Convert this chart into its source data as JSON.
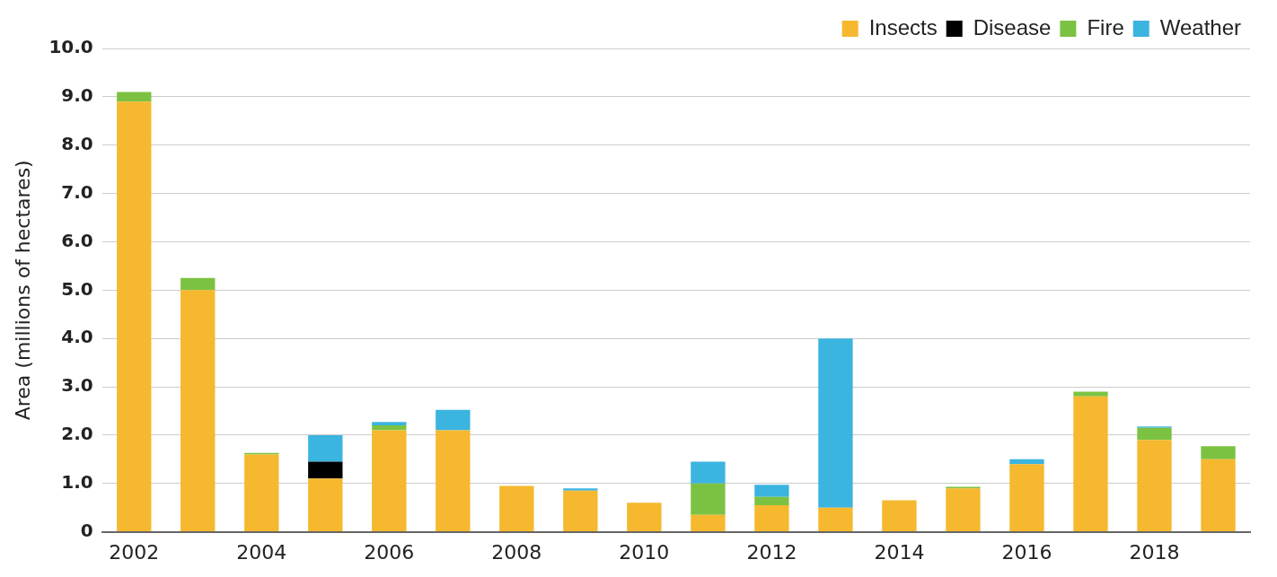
{
  "chart_data": {
    "type": "bar",
    "stacked": true,
    "ylabel": "Area (millions of hectares)",
    "categories": [
      "2002",
      null,
      "2004",
      null,
      "2006",
      null,
      "2008",
      null,
      "2010",
      null,
      "2012",
      null,
      "2014",
      null,
      "2016",
      null,
      "2018",
      null
    ],
    "series": [
      {
        "name": "Insects",
        "color": "#f5b82e",
        "values": [
          8.9,
          5.0,
          1.6,
          1.1,
          2.1,
          2.1,
          0.95,
          0.85,
          0.6,
          0.35,
          0.55,
          0.5,
          0.65,
          0.9,
          1.4,
          2.8,
          1.9,
          1.5
        ]
      },
      {
        "name": "Disease",
        "color": "#000000",
        "values": [
          null,
          null,
          null,
          0.35,
          null,
          null,
          null,
          null,
          null,
          null,
          null,
          null,
          null,
          null,
          null,
          null,
          null,
          null
        ]
      },
      {
        "name": "Fire",
        "color": "#7cc242",
        "values": [
          0.2,
          0.25,
          0.03,
          null,
          0.1,
          null,
          null,
          null,
          null,
          0.65,
          0.17,
          null,
          null,
          0.03,
          null,
          0.1,
          0.25,
          0.27
        ]
      },
      {
        "name": "Weather",
        "color": "#3bb4e0",
        "values": [
          null,
          null,
          null,
          0.55,
          0.07,
          0.42,
          null,
          0.05,
          null,
          0.45,
          0.25,
          3.5,
          null,
          null,
          0.1,
          null,
          0.03,
          null
        ]
      }
    ],
    "ylim": [
      0,
      10
    ],
    "yticks": [
      0,
      {
        "value": 1,
        "label": "1.0"
      },
      {
        "value": 2,
        "label": "2.0"
      },
      {
        "value": 3,
        "label": "3.0"
      },
      {
        "value": 4,
        "label": "4.0"
      },
      {
        "value": 5,
        "label": "5.0"
      },
      {
        "value": 6,
        "label": "6.0"
      },
      {
        "value": 7,
        "label": "7.0"
      },
      {
        "value": 8,
        "label": "8.0"
      },
      {
        "value": 9,
        "label": "9.0"
      },
      {
        "value": 10,
        "label": "10.0"
      }
    ],
    "grid": "y",
    "legend": "top right"
  }
}
